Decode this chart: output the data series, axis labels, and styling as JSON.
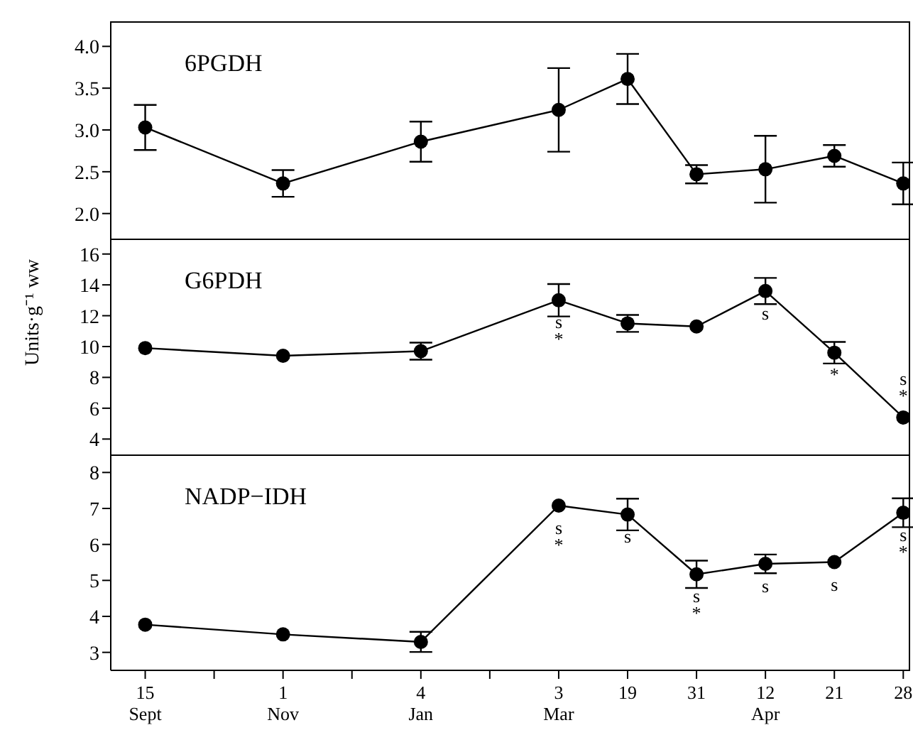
{
  "chart_data": [
    {
      "type": "line",
      "title": "6PGDH",
      "ylabel": "Units·g⁻¹ ww",
      "color": "#000000",
      "marker": "circle",
      "line_style": "solid",
      "tick_labels": "y",
      "categories": [
        "15\nSept",
        null,
        "1\nNov",
        null,
        "4\nJan",
        null,
        "3\nMar",
        "19",
        "31",
        "12\nApr",
        "21",
        "28"
      ],
      "values": [
        3.03,
        null,
        2.36,
        null,
        2.86,
        null,
        3.24,
        3.61,
        2.47,
        2.53,
        2.69,
        2.36
      ],
      "errors": [
        0.27,
        null,
        0.16,
        null,
        0.24,
        null,
        0.5,
        0.3,
        0.11,
        0.4,
        0.13,
        0.25
      ],
      "ylim": [
        1.7,
        4.3
      ],
      "yticks": [
        {
          "value": 2,
          "label": "2.0"
        },
        {
          "value": 2.5,
          "label": "2.5"
        },
        {
          "value": 3,
          "label": "3.0"
        },
        {
          "value": 3.5,
          "label": "3.5"
        },
        {
          "value": 4,
          "label": "4.0"
        }
      ]
    },
    {
      "type": "line",
      "title": "G6PDH",
      "color": "#000000",
      "marker": "circle",
      "line_style": "solid",
      "tick_labels": "y",
      "categories": [
        "15\nSept",
        null,
        "1\nNov",
        null,
        "4\nJan",
        null,
        "3\nMar",
        "19",
        "31",
        "12\nApr",
        "21",
        "28"
      ],
      "values": [
        9.9,
        null,
        9.4,
        null,
        9.7,
        null,
        13.0,
        11.5,
        11.3,
        13.6,
        9.6,
        5.4
      ],
      "errors": [
        null,
        null,
        null,
        null,
        0.55,
        null,
        1.05,
        0.55,
        null,
        0.85,
        0.7,
        null
      ],
      "ylim": [
        3,
        17
      ],
      "yticks": [
        4,
        6,
        8,
        10,
        12,
        14,
        16
      ],
      "annotations": [
        {
          "text": "s",
          "x": "3\nMar",
          "y": 13.0
        },
        {
          "text": "*",
          "x": "3\nMar",
          "y": 13.0
        },
        {
          "text": "s",
          "x": "12\nApr",
          "y": 13.6
        },
        {
          "text": "*",
          "x": "21",
          "y": 9.6
        },
        {
          "text": "s",
          "x": "28",
          "y": 5.4
        },
        {
          "text": "*",
          "x": "28",
          "y": 5.4
        }
      ]
    },
    {
      "type": "line",
      "title": "NADP−IDH",
      "color": "#000000",
      "marker": "circle",
      "line_style": "solid",
      "categories": [
        "15\nSept",
        null,
        "1\nNov",
        null,
        "4\nJan",
        null,
        "3\nMar",
        "19",
        "31",
        "12\nApr",
        "21",
        "28"
      ],
      "values": [
        3.77,
        null,
        3.5,
        null,
        3.29,
        null,
        7.08,
        6.83,
        5.17,
        5.46,
        5.51,
        6.88
      ],
      "errors": [
        null,
        null,
        null,
        null,
        0.28,
        null,
        null,
        0.44,
        0.38,
        0.26,
        null,
        0.4
      ],
      "ylim": [
        2.5,
        8.5
      ],
      "yticks": [
        3,
        4,
        5,
        6,
        7,
        8
      ],
      "annotations": [
        {
          "text": "s",
          "x": "3\nMar",
          "y": 7.08
        },
        {
          "text": "*",
          "x": "3\nMar",
          "y": 7.08
        },
        {
          "text": "s",
          "x": "19",
          "y": 6.83
        },
        {
          "text": "s",
          "x": "31",
          "y": 5.17
        },
        {
          "text": "*",
          "x": "31",
          "y": 5.17
        },
        {
          "text": "s",
          "x": "12\nApr",
          "y": 5.46
        },
        {
          "text": "s",
          "x": "21",
          "y": 5.51
        },
        {
          "text": "s",
          "x": "28",
          "y": 6.88
        },
        {
          "text": "*",
          "x": "28",
          "y": 6.88
        }
      ]
    }
  ]
}
